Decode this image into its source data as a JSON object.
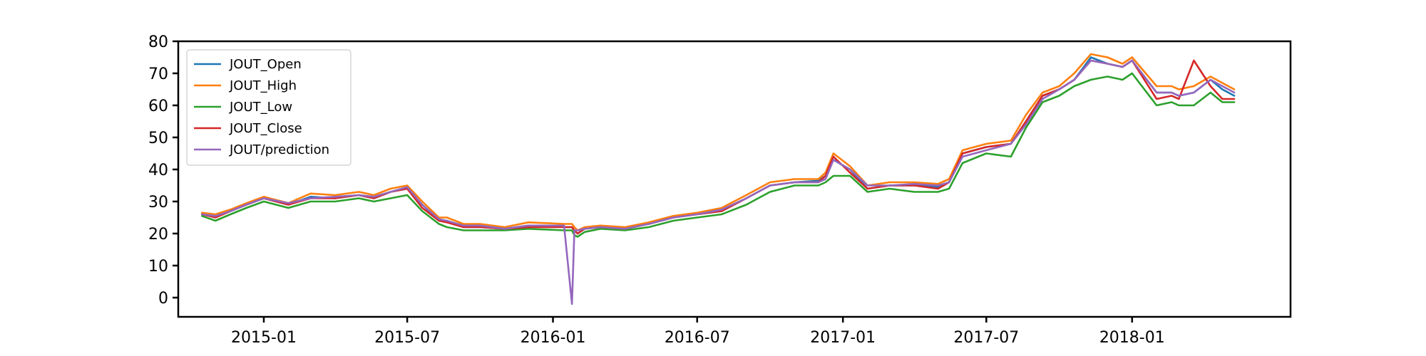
{
  "chart_data": {
    "type": "line",
    "title": "",
    "xlabel": "",
    "ylabel": "",
    "ylim": [
      -6,
      80
    ],
    "xlim": [
      "2014-09-15",
      "2018-07-20"
    ],
    "grid": false,
    "legend_position": "upper-left",
    "yticks": [
      0,
      10,
      20,
      30,
      40,
      50,
      60,
      70,
      80
    ],
    "xticks": [
      {
        "date": "2015-01-01",
        "label": "2015-01"
      },
      {
        "date": "2015-07-01",
        "label": "2015-07"
      },
      {
        "date": "2016-01-01",
        "label": "2016-01"
      },
      {
        "date": "2016-07-01",
        "label": "2016-07"
      },
      {
        "date": "2017-01-01",
        "label": "2017-01"
      },
      {
        "date": "2017-07-01",
        "label": "2017-07"
      },
      {
        "date": "2018-01-01",
        "label": "2018-01"
      }
    ],
    "x": [
      "2014-10-15",
      "2014-11-01",
      "2014-11-20",
      "2014-12-10",
      "2015-01-01",
      "2015-02-01",
      "2015-03-01",
      "2015-04-01",
      "2015-05-01",
      "2015-05-20",
      "2015-06-10",
      "2015-07-01",
      "2015-07-20",
      "2015-08-10",
      "2015-08-20",
      "2015-09-10",
      "2015-10-01",
      "2015-11-01",
      "2015-12-01",
      "2016-01-15",
      "2016-01-25",
      "2016-01-28",
      "2016-02-01",
      "2016-02-10",
      "2016-03-01",
      "2016-04-01",
      "2016-05-01",
      "2016-06-01",
      "2016-07-01",
      "2016-08-01",
      "2016-09-01",
      "2016-10-01",
      "2016-11-01",
      "2016-12-01",
      "2016-12-10",
      "2016-12-20",
      "2017-01-10",
      "2017-02-01",
      "2017-03-01",
      "2017-04-01",
      "2017-05-01",
      "2017-05-15",
      "2017-06-01",
      "2017-07-01",
      "2017-08-01",
      "2017-08-20",
      "2017-09-10",
      "2017-10-01",
      "2017-10-20",
      "2017-11-10",
      "2017-12-01",
      "2017-12-20",
      "2018-01-01",
      "2018-02-01",
      "2018-02-20",
      "2018-03-01",
      "2018-03-20",
      "2018-04-10",
      "2018-04-25",
      "2018-05-10"
    ],
    "series": [
      {
        "name": "JOUT_Open",
        "color": "#1f77b4",
        "values": [
          26,
          25.5,
          27,
          29,
          31,
          29,
          31.5,
          31,
          32,
          31,
          33,
          34,
          29,
          24,
          24,
          22,
          22,
          21.5,
          22.5,
          22,
          22,
          21,
          20,
          21.5,
          22,
          21.5,
          23,
          25,
          26,
          27,
          31,
          35,
          36,
          36.5,
          38,
          43,
          40,
          34,
          35,
          35,
          34.5,
          36,
          45,
          47,
          48,
          55,
          63,
          65,
          68,
          75,
          73,
          72,
          74,
          64,
          64,
          63,
          64,
          68,
          65,
          63
        ]
      },
      {
        "name": "JOUT_High",
        "color": "#ff7f0e",
        "values": [
          26.5,
          26,
          27.5,
          29.5,
          31.5,
          29.5,
          32.5,
          32,
          33,
          32,
          34,
          35,
          30,
          25,
          25,
          23,
          23,
          22,
          23.5,
          23,
          23,
          22,
          21,
          22,
          22.5,
          22,
          23.5,
          25.5,
          26.5,
          28,
          32,
          36,
          37,
          37,
          39,
          45,
          41,
          35,
          36,
          36,
          35.5,
          37,
          46,
          48,
          49,
          57,
          64,
          66,
          70,
          76,
          75,
          73,
          75,
          66,
          66,
          65,
          66,
          69,
          67,
          65
        ]
      },
      {
        "name": "JOUT_Low",
        "color": "#2ca02c",
        "values": [
          25.5,
          24,
          26,
          28,
          30,
          28,
          30,
          30,
          31,
          30,
          31,
          32,
          27,
          23,
          22,
          21,
          21,
          21,
          21.5,
          21,
          21,
          19.5,
          19,
          20.5,
          21.5,
          21,
          22,
          24,
          25,
          26,
          29,
          33,
          35,
          35,
          36,
          38,
          38,
          33,
          34,
          33,
          33,
          34,
          42,
          45,
          44,
          53,
          61,
          63,
          66,
          68,
          69,
          68,
          70,
          60,
          61,
          60,
          60,
          64,
          61,
          61
        ]
      },
      {
        "name": "JOUT_Close",
        "color": "#d62728",
        "values": [
          26,
          25,
          27,
          29,
          31,
          29,
          31,
          31,
          32,
          31,
          33,
          34,
          28,
          24,
          23.5,
          22,
          22,
          21.5,
          22,
          22,
          22,
          21,
          20,
          21.5,
          22,
          21.5,
          23,
          25,
          26,
          27,
          31,
          35,
          36,
          36,
          38,
          44,
          39,
          34,
          35,
          35,
          34,
          36,
          45,
          47,
          48,
          55,
          63,
          65,
          68,
          74,
          73,
          72,
          74,
          62,
          63,
          62,
          74,
          66,
          62,
          62
        ]
      },
      {
        "name": "JOUT/prediction",
        "color": "#9467bd",
        "values": [
          26,
          25.5,
          27,
          29,
          31,
          29.5,
          31,
          31.5,
          32,
          31.5,
          33,
          34.5,
          29,
          24.5,
          24,
          22.5,
          22.5,
          21.5,
          22.5,
          22.5,
          -2,
          21,
          21,
          21.5,
          22,
          21.5,
          23,
          25,
          26,
          27.5,
          31,
          35,
          36,
          36,
          37,
          43,
          40,
          35,
          35,
          35.5,
          35,
          36,
          44,
          46,
          48,
          54,
          62,
          65,
          68,
          74,
          73,
          72,
          74,
          64,
          64,
          63,
          64,
          68,
          66,
          64
        ]
      }
    ]
  }
}
